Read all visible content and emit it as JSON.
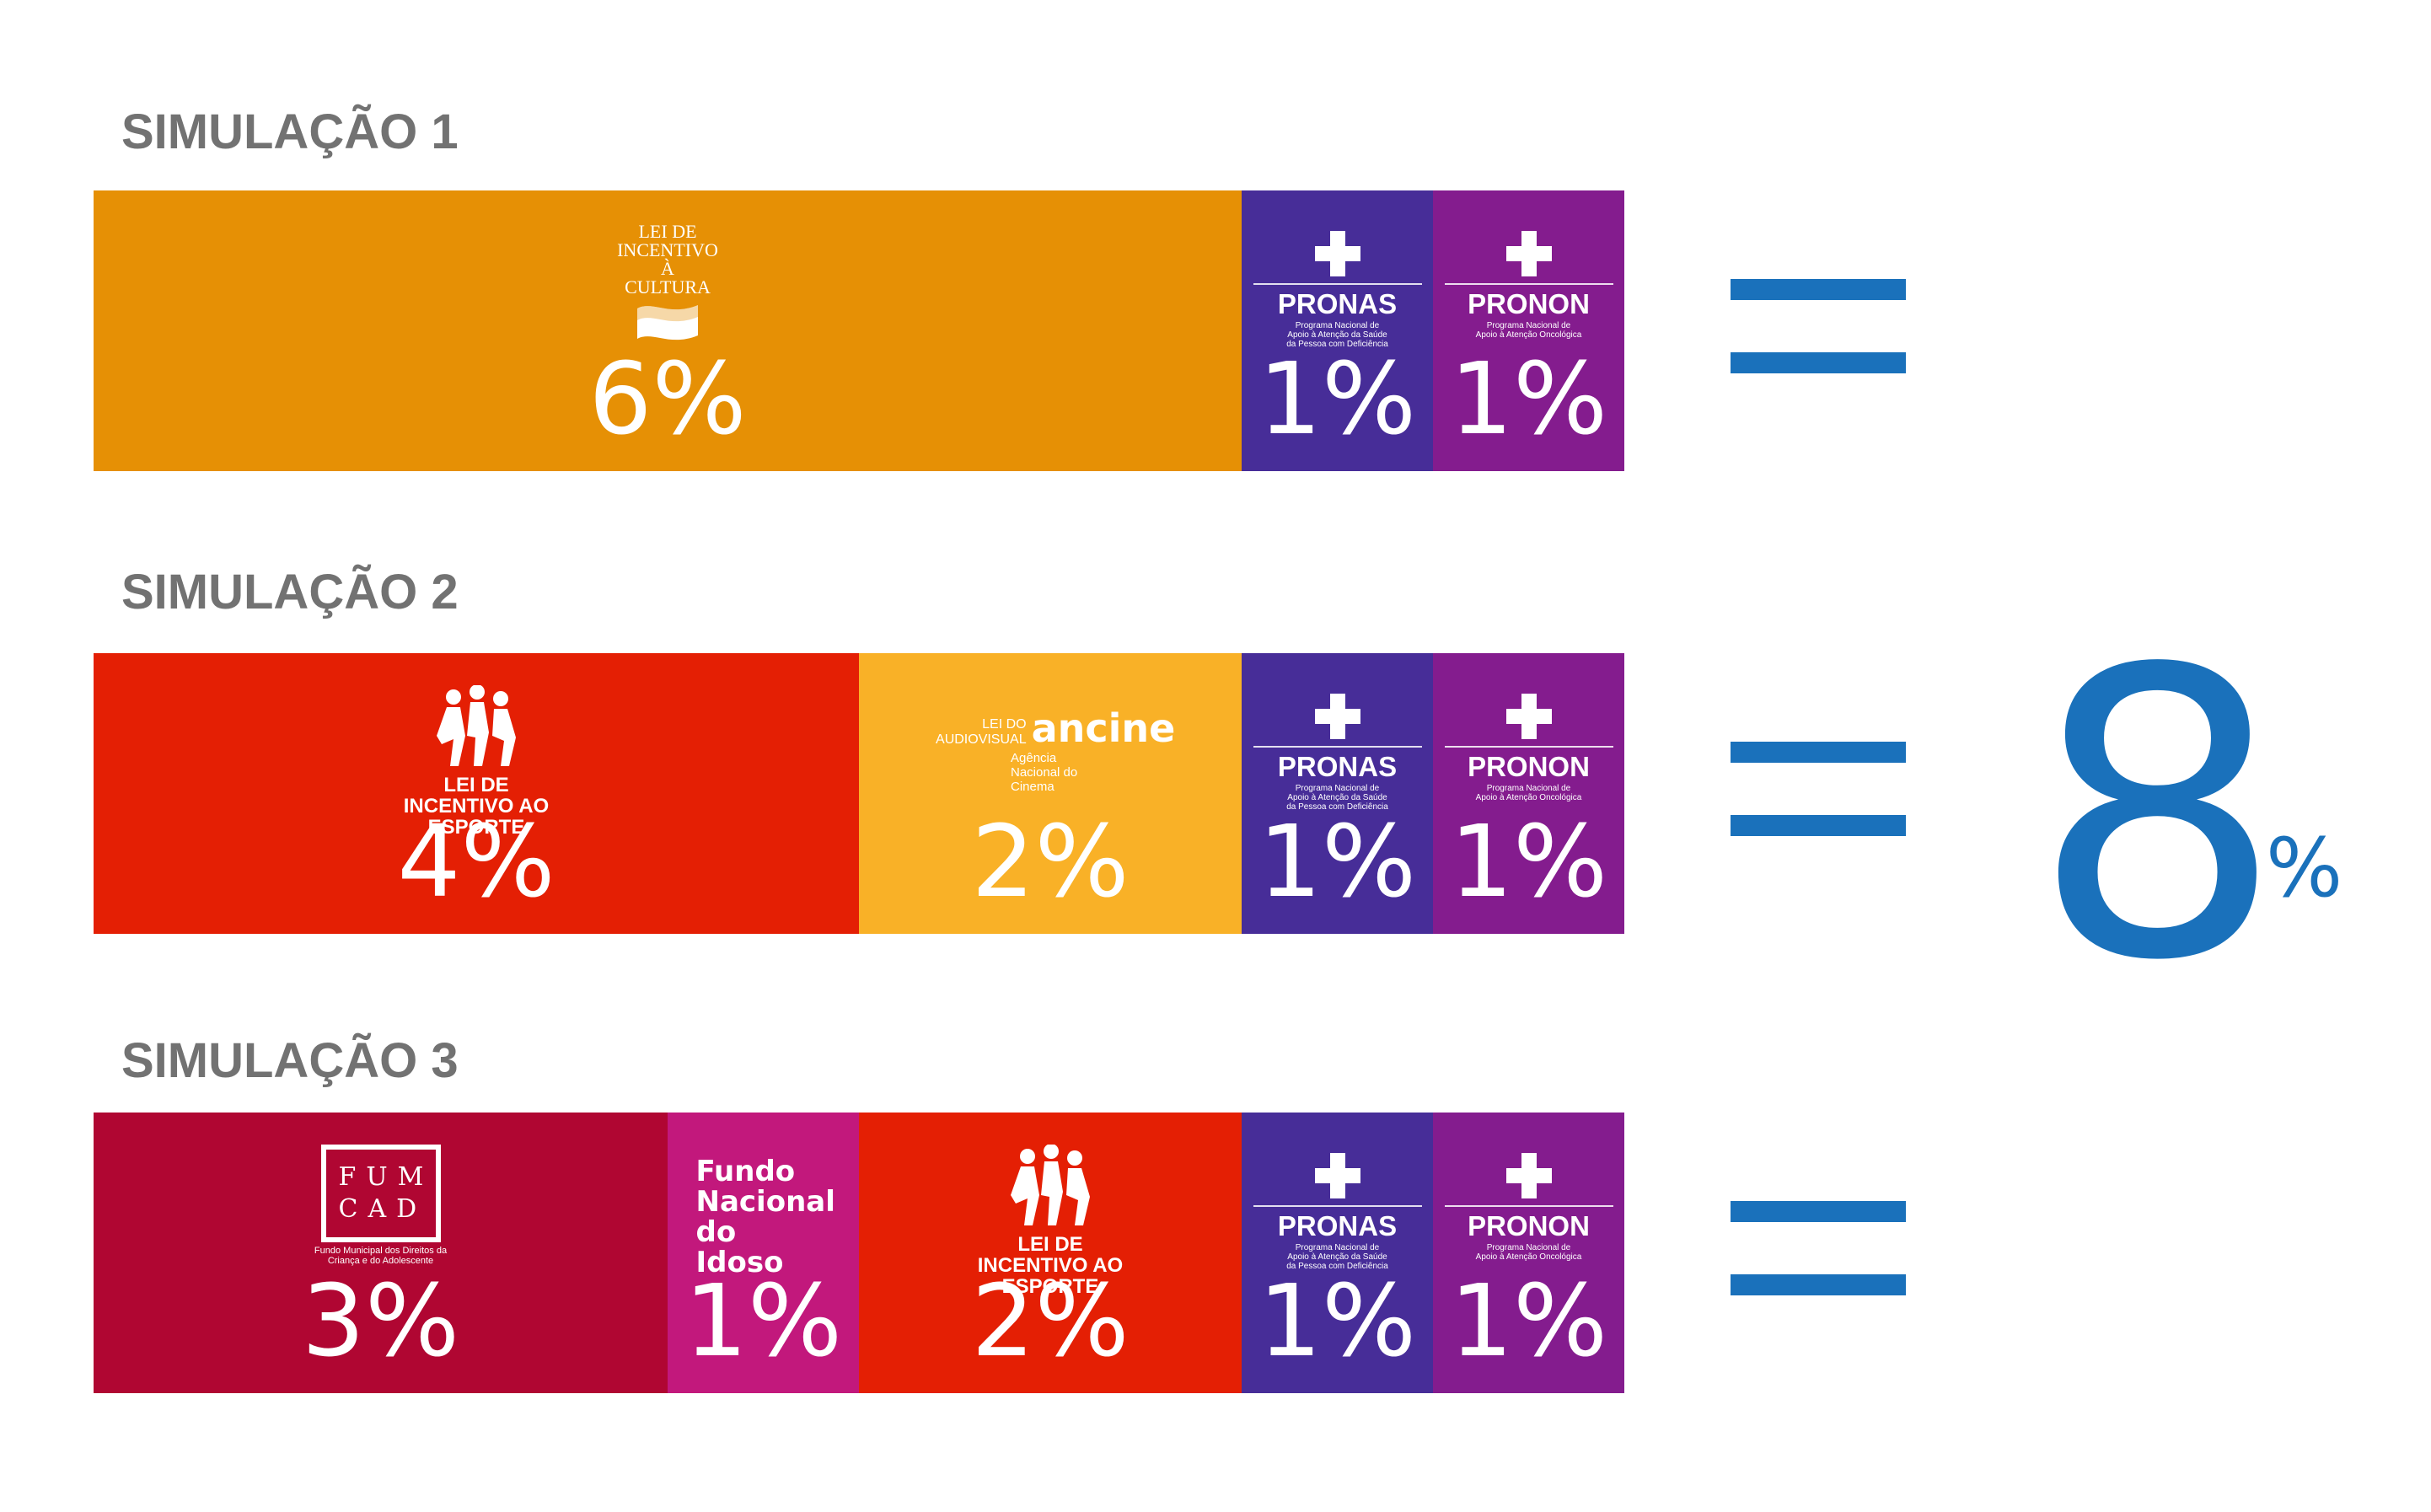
{
  "chart_data": {
    "type": "bar",
    "orientation": "horizontal-stacked",
    "title": "",
    "simulations": [
      {
        "title": "SIMULAÇÃO 1",
        "segments": [
          {
            "program": "Lei de Incentivo à Cultura",
            "logo_text": "LEI DE INCENTIVO À CULTURA",
            "value": 6,
            "label": "6%",
            "color": "#e69005"
          },
          {
            "program": "PRONAS",
            "logo_text": "PRONAS",
            "logo_subtext": "Programa Nacional de Apoio à Atenção da Saúde da Pessoa com Deficiência",
            "value": 1,
            "label": "1%",
            "color": "#472d98"
          },
          {
            "program": "PRONON",
            "logo_text": "PRONON",
            "logo_subtext": "Programa Nacional de Apoio à Atenção Oncológica",
            "value": 1,
            "label": "1%",
            "color": "#841c8e"
          }
        ]
      },
      {
        "title": "SIMULAÇÃO 2",
        "segments": [
          {
            "program": "Lei de Incentivo ao Esporte",
            "logo_text": "LEI DE INCENTIVO AO ESPORTE",
            "value": 4,
            "label": "4%",
            "color": "#e41f04"
          },
          {
            "program": "Lei do Audiovisual / Ancine",
            "logo_text": "LEI DO AUDIOVISUAL",
            "logo_brand": "ancine",
            "logo_subtext": "Agência Nacional do Cinema",
            "value": 2,
            "label": "2%",
            "color": "#f9b127"
          },
          {
            "program": "PRONAS",
            "logo_text": "PRONAS",
            "logo_subtext": "Programa Nacional de Apoio à Atenção da Saúde da Pessoa com Deficiência",
            "value": 1,
            "label": "1%",
            "color": "#472d98"
          },
          {
            "program": "PRONON",
            "logo_text": "PRONON",
            "logo_subtext": "Programa Nacional de Apoio à Atenção Oncológica",
            "value": 1,
            "label": "1%",
            "color": "#841c8e"
          }
        ]
      },
      {
        "title": "SIMULAÇÃO 3",
        "segments": [
          {
            "program": "FUMCAD",
            "logo_text": "FUM CAD",
            "logo_subtext": "Fundo Municipal dos Direitos da Criança e do Adolescente",
            "value": 3,
            "label": "3%",
            "color": "#b00632"
          },
          {
            "program": "Fundo Nacional do Idoso",
            "logo_text": "Fundo Nacional do Idoso",
            "value": 1,
            "label": "1%",
            "color": "#c2187c"
          },
          {
            "program": "Lei de Incentivo ao Esporte",
            "logo_text": "LEI DE INCENTIVO AO ESPORTE",
            "value": 2,
            "label": "2%",
            "color": "#e41f04"
          },
          {
            "program": "PRONAS",
            "logo_text": "PRONAS",
            "logo_subtext": "Programa Nacional de Apoio à Atenção da Saúde da Pessoa com Deficiência",
            "value": 1,
            "label": "1%",
            "color": "#472d98"
          },
          {
            "program": "PRONON",
            "logo_text": "PRONON",
            "logo_subtext": "Programa Nacional de Apoio à Atenção Oncológica",
            "value": 1,
            "label": "1%",
            "color": "#841c8e"
          }
        ]
      }
    ],
    "equals_symbol": "=",
    "total": {
      "value": 8,
      "number": "8",
      "unit": "%",
      "color": "#1a71bb"
    },
    "xlim": [
      0,
      8
    ],
    "grid": false,
    "legend": "none"
  }
}
